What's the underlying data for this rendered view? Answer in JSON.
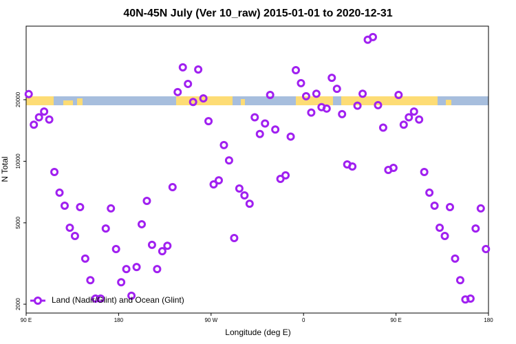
{
  "chart_data": {
    "type": "scatter",
    "title": "40N-45N July (Ver 10_raw)   2015-01-01 to 2020-12-31",
    "xlabel": "Longitude (deg E)",
    "ylabel": "N Total",
    "xlim": [
      90,
      540
    ],
    "xticks": [
      {
        "value": 90,
        "label": "90 E"
      },
      {
        "value": 180,
        "label": "180"
      },
      {
        "value": 270,
        "label": "90 W"
      },
      {
        "value": 360,
        "label": "0"
      },
      {
        "value": 450,
        "label": "90 E"
      },
      {
        "value": 540,
        "label": "180"
      }
    ],
    "ylim": [
      1810,
      45800
    ],
    "ylog": true,
    "yticks": [
      2000,
      5000,
      10000,
      20000
    ],
    "legend": "bottomleft",
    "series": [
      {
        "name": "Land (Nadir/Glint) and Ocean (Glint)",
        "color": "#a020f0",
        "x": [
          92.5,
          97.5,
          102.5,
          107.5,
          112.5,
          117.5,
          122.5,
          127.5,
          132.5,
          137.5,
          142.5,
          147.5,
          152.5,
          157.5,
          162.5,
          167.5,
          172.5,
          177.5,
          182.5,
          187.5,
          192.5,
          197.5,
          202.5,
          207.5,
          212.5,
          217.5,
          222.5,
          227.5,
          232.5,
          237.5,
          242.5,
          247.5,
          252.5,
          257.5,
          262.5,
          267.5,
          272.5,
          277.5,
          282.5,
          287.5,
          292.5,
          297.5,
          302.5,
          307.5,
          312.5,
          317.5,
          322.5,
          327.5,
          332.5,
          337.5,
          342.5,
          347.5,
          352.5,
          357.5,
          362.5,
          367.5,
          372.5,
          377.5,
          382.5,
          387.5,
          392.5,
          397.5,
          402.5,
          407.5,
          412.5,
          417.5,
          422.5,
          427.5,
          432.5,
          437.5,
          442.5,
          447.5,
          452.5,
          457.5,
          462.5,
          467.5,
          472.5,
          477.5,
          482.5,
          487.5,
          492.5,
          497.5,
          502.5,
          507.5,
          512.5,
          517.5,
          522.5,
          527.5,
          532.5,
          537.5
        ],
        "values": [
          21300,
          15100,
          16400,
          17500,
          16000,
          8860,
          7020,
          6060,
          4730,
          4310,
          5970,
          3340,
          2620,
          2130,
          2130,
          4690,
          5880,
          3720,
          2560,
          2970,
          2200,
          3040,
          4920,
          6400,
          3900,
          2970,
          3630,
          3860,
          7470,
          21800,
          28800,
          23900,
          19500,
          28100,
          20300,
          15700,
          7710,
          8070,
          12000,
          10100,
          4210,
          7360,
          6810,
          6200,
          16400,
          13600,
          15300,
          21100,
          14300,
          8200,
          8530,
          13200,
          27900,
          24100,
          20800,
          17300,
          21400,
          18400,
          18100,
          25600,
          22600,
          17000,
          9650,
          9430,
          18700,
          21400,
          39300,
          40500,
          18800,
          14600,
          9070,
          9280,
          21100,
          15100,
          16400,
          17500,
          16000,
          8860,
          7020,
          6060,
          4730,
          4310,
          5970,
          3340,
          2620,
          2110,
          2130,
          4690,
          5880,
          3720
        ]
      }
    ]
  }
}
